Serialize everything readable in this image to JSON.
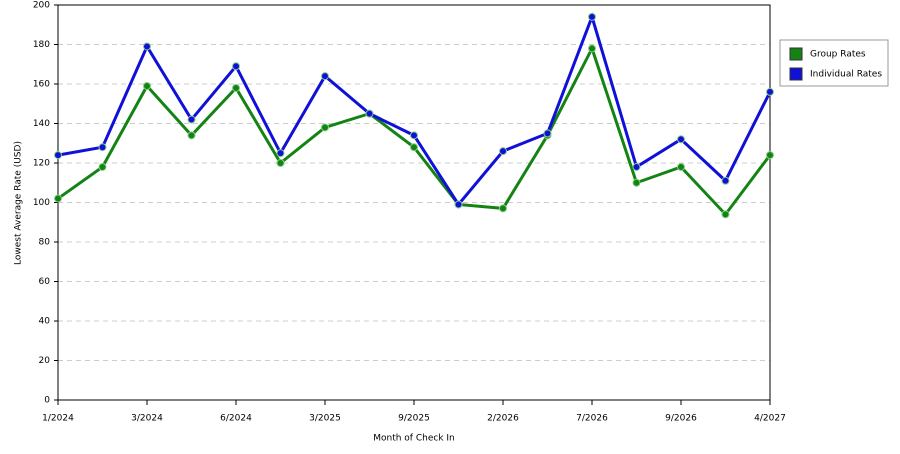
{
  "chart_data": {
    "type": "line",
    "x_label": "Month of Check In",
    "y_label": "Lowest Average Rate (USD)",
    "categories": [
      "1/2024",
      null,
      "3/2024",
      null,
      "6/2024",
      null,
      "3/2025",
      null,
      "9/2025",
      null,
      "2/2026",
      null,
      "7/2026",
      null,
      "9/2026",
      null,
      "4/2027"
    ],
    "series": [
      {
        "name": "Group Rates",
        "color": "#138413",
        "values": [
          102,
          118,
          159,
          134,
          158,
          120,
          138,
          145,
          128,
          99,
          97,
          134,
          178,
          110,
          118,
          94,
          124
        ]
      },
      {
        "name": "Individual Rates",
        "color": "#1010d8",
        "values": [
          124,
          128,
          179,
          142,
          169,
          125,
          164,
          145,
          134,
          99,
          126,
          135,
          194,
          118,
          132,
          111,
          156
        ]
      }
    ],
    "ylim": [
      0,
      200
    ],
    "yticks": [
      0,
      20,
      40,
      60,
      80,
      100,
      120,
      140,
      160,
      180,
      200
    ],
    "grid": true,
    "legend": "right"
  }
}
